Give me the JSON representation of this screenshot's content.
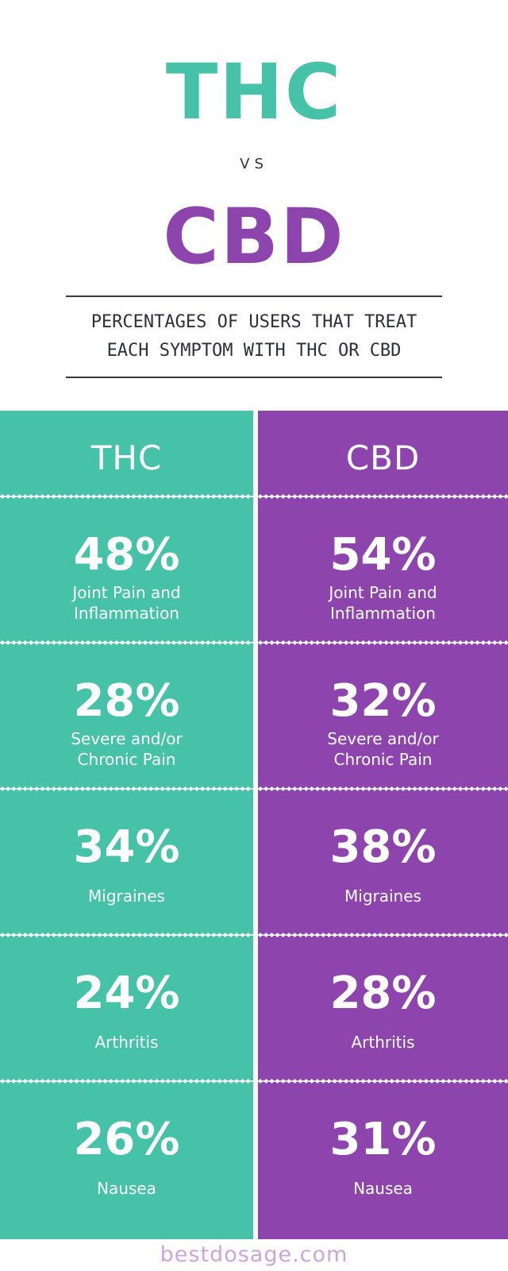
{
  "header": {
    "title_top": "THC",
    "vs": "VS",
    "title_bottom": "CBD",
    "subtitle_line1": "PERCENTAGES OF USERS THAT TREAT",
    "subtitle_line2": "EACH SYMPTOM WITH THC OR CBD"
  },
  "colors": {
    "thc": "#45c2a8",
    "cbd": "#8e44ad",
    "rule": "#3a3a3a",
    "footer_text": "#c9a6dc"
  },
  "columns": [
    {
      "label": "THC",
      "rows": [
        {
          "percent": "48%",
          "symptom": "Joint Pain and\nInflammation"
        },
        {
          "percent": "28%",
          "symptom": "Severe and/or\nChronic Pain"
        },
        {
          "percent": "34%",
          "symptom": "Migraines"
        },
        {
          "percent": "24%",
          "symptom": "Arthritis"
        },
        {
          "percent": "26%",
          "symptom": "Nausea"
        }
      ]
    },
    {
      "label": "CBD",
      "rows": [
        {
          "percent": "54%",
          "symptom": "Joint Pain and\nInflammation"
        },
        {
          "percent": "32%",
          "symptom": "Severe and/or\nChronic Pain"
        },
        {
          "percent": "38%",
          "symptom": "Migraines"
        },
        {
          "percent": "28%",
          "symptom": "Arthritis"
        },
        {
          "percent": "31%",
          "symptom": "Nausea"
        }
      ]
    }
  ],
  "footer": {
    "site": "bestdosage.com"
  }
}
